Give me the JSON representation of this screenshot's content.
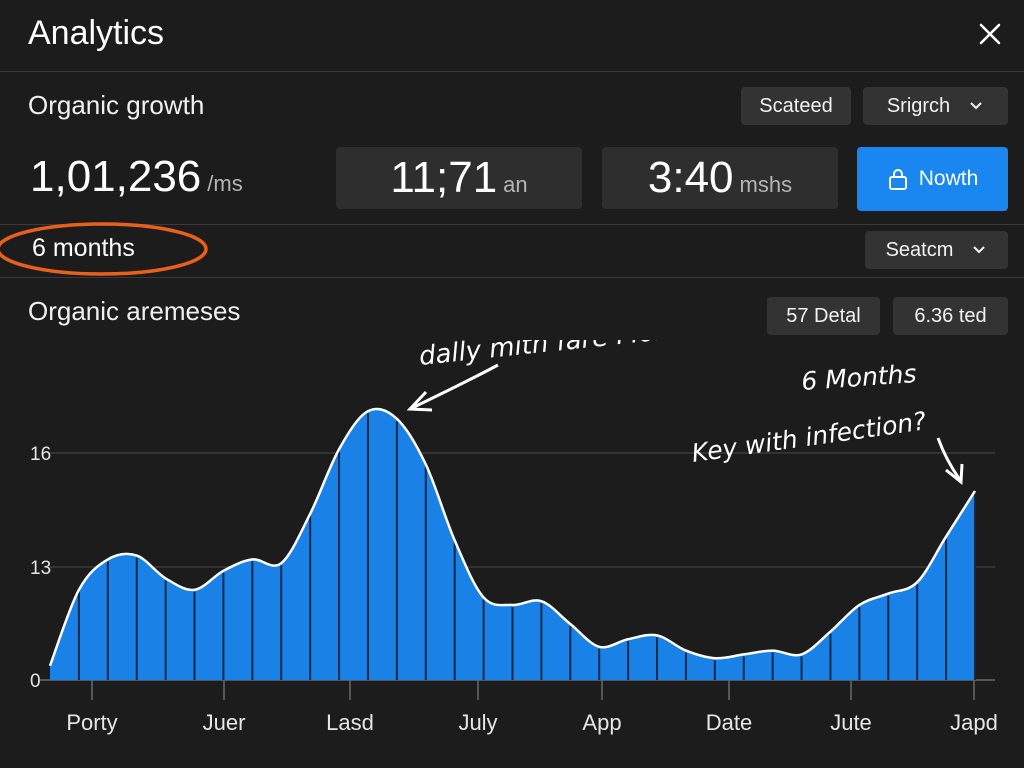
{
  "header": {
    "title": "Analytics",
    "close_icon": "close-icon"
  },
  "summary": {
    "section_title": "Organic growth",
    "chip_selected": "Scateed",
    "dropdown_search": "Srigrch",
    "big_stat": {
      "value": "1,01,236",
      "unit": "/ms"
    },
    "stat_2": {
      "value": "11;71",
      "unit": "an"
    },
    "stat_3": {
      "value": "3:40",
      "unit": "mshs"
    },
    "primary_button": {
      "label": "Nowth",
      "icon": "lock-icon"
    }
  },
  "filter": {
    "range_label": "6 months",
    "dropdown_label": "Seatcm",
    "highlight_color": "#e8601c"
  },
  "chart_section": {
    "title": "Organic aremeses",
    "chip_1": "57 Detal",
    "chip_2": "6.36 ted"
  },
  "annotations": {
    "note_1": "dally mith fare Months",
    "note_2_line1": "6 Months",
    "note_2_line2": "Key with infection?"
  },
  "colors": {
    "accent": "#1a86ef",
    "bar": "#1a82e6",
    "background": "#1c1c1c"
  },
  "chart_data": {
    "type": "area",
    "title": "Organic aremeses",
    "xlabel": "",
    "ylabel": "",
    "y_ticks": [
      0,
      13,
      16
    ],
    "x_tick_labels": [
      "Porty",
      "Juer",
      "Lasd",
      "July",
      "App",
      "Date",
      "Jute",
      "Japd"
    ],
    "ylim": [
      10.4,
      17.5
    ],
    "grid": true,
    "legend": "none",
    "series": [
      {
        "values": [
          10.4,
          12.4,
          13.2,
          13.3,
          12.7,
          12.4,
          12.9,
          13.2,
          13.1,
          14.4,
          16.1,
          17.1,
          16.9,
          15.7,
          13.7,
          12.2,
          12.0,
          12.1,
          11.5,
          10.9,
          11.1,
          11.2,
          10.8,
          10.6,
          10.7,
          10.8,
          10.7,
          11.3,
          12.0,
          12.3,
          12.6,
          13.8,
          15.0
        ]
      }
    ]
  }
}
